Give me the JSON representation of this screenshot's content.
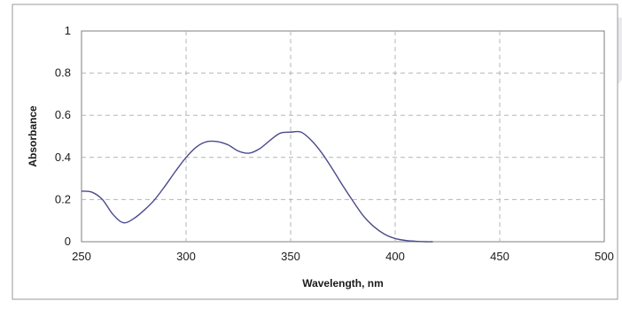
{
  "chart_data": {
    "type": "line",
    "title": "",
    "xlabel": "Wavelength, nm",
    "ylabel": "Absorbance",
    "xlim": [
      250,
      500
    ],
    "ylim": [
      0,
      1
    ],
    "xticks": [
      "250",
      "300",
      "350",
      "400",
      "450",
      "500"
    ],
    "yticks": [
      "0",
      "0.2",
      "0.4",
      "0.6",
      "0.8",
      "1"
    ],
    "grid": true,
    "legend": "none",
    "line_color": "#4a4a8c",
    "series": [
      {
        "x": [
          250,
          255,
          260,
          265,
          270,
          275,
          280,
          285,
          290,
          295,
          300,
          305,
          310,
          315,
          320,
          325,
          330,
          335,
          340,
          345,
          350,
          355,
          360,
          365,
          370,
          375,
          380,
          385,
          390,
          395,
          400,
          405,
          410,
          415,
          418
        ],
        "y": [
          0.24,
          0.235,
          0.2,
          0.13,
          0.09,
          0.11,
          0.15,
          0.2,
          0.265,
          0.335,
          0.4,
          0.45,
          0.475,
          0.475,
          0.46,
          0.43,
          0.42,
          0.44,
          0.48,
          0.515,
          0.52,
          0.52,
          0.48,
          0.42,
          0.345,
          0.265,
          0.19,
          0.12,
          0.07,
          0.035,
          0.015,
          0.006,
          0.002,
          0.0,
          0.0
        ]
      }
    ]
  }
}
